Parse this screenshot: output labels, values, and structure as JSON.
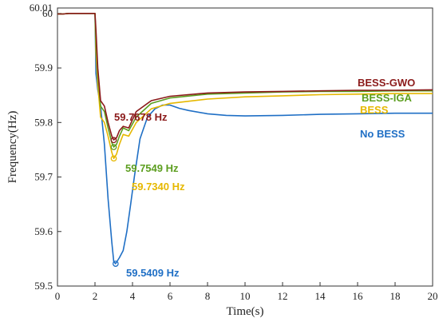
{
  "chart_data": {
    "type": "line",
    "xlabel": "Time(s)",
    "ylabel": "Frequency(Hz)",
    "xlim": [
      0,
      20
    ],
    "ylim": [
      59.5,
      60.01
    ],
    "xticks": [
      "0",
      "2",
      "4",
      "6",
      "8",
      "10",
      "12",
      "14",
      "16",
      "18",
      "20"
    ],
    "yticks": [
      "59.5",
      "59.6",
      "59.7",
      "59.8",
      "59.9",
      "60",
      "60.01"
    ],
    "legend_position": "right",
    "series": [
      {
        "name": "BESS-GWO",
        "color": "#8B1A1A",
        "x": [
          0,
          0.3,
          0.6,
          1.0,
          1.5,
          2.0,
          2.05,
          2.15,
          2.3,
          2.5,
          2.7,
          2.9,
          3.0,
          3.15,
          3.3,
          3.5,
          3.8,
          4.2,
          5,
          6,
          8,
          10,
          12,
          14,
          16,
          18,
          20
        ],
        "y": [
          59.999,
          59.999,
          60.0,
          60.0,
          60.0,
          60.0,
          59.97,
          59.9,
          59.84,
          59.83,
          59.8,
          59.775,
          59.768,
          59.772,
          59.785,
          59.793,
          59.79,
          59.82,
          59.84,
          59.848,
          59.854,
          59.856,
          59.857,
          59.858,
          59.859,
          59.859,
          59.86
        ]
      },
      {
        "name": "BESS-IGA",
        "color": "#5C9E1F",
        "x": [
          0,
          0.3,
          0.6,
          1.0,
          1.5,
          2.0,
          2.05,
          2.15,
          2.3,
          2.5,
          2.7,
          2.9,
          3.0,
          3.15,
          3.3,
          3.5,
          3.8,
          4.2,
          5,
          6,
          8,
          10,
          12,
          14,
          16,
          18,
          20
        ],
        "y": [
          59.999,
          59.999,
          60.0,
          60.0,
          60.0,
          60.0,
          59.95,
          59.89,
          59.83,
          59.82,
          59.79,
          59.763,
          59.755,
          59.76,
          59.775,
          59.79,
          59.785,
          59.81,
          59.835,
          59.845,
          59.852,
          59.854,
          59.856,
          59.857,
          59.857,
          59.858,
          59.858
        ]
      },
      {
        "name": "BESS",
        "color": "#E6B800",
        "x": [
          0,
          0.3,
          0.6,
          1.0,
          1.5,
          2.0,
          2.05,
          2.15,
          2.3,
          2.5,
          2.7,
          2.9,
          3.0,
          3.15,
          3.3,
          3.5,
          3.8,
          4.2,
          5,
          6,
          8,
          10,
          12,
          14,
          16,
          18,
          20
        ],
        "y": [
          59.999,
          59.999,
          60.0,
          60.0,
          60.0,
          60.0,
          59.93,
          59.87,
          59.81,
          59.8,
          59.775,
          59.745,
          59.734,
          59.742,
          59.76,
          59.778,
          59.775,
          59.8,
          59.825,
          59.835,
          59.843,
          59.847,
          59.849,
          59.851,
          59.852,
          59.853,
          59.853
        ]
      },
      {
        "name": "No BESS",
        "color": "#1F6FC5",
        "x": [
          0,
          0.3,
          0.6,
          1.0,
          1.5,
          2.0,
          2.05,
          2.15,
          2.3,
          2.5,
          2.7,
          2.9,
          3.0,
          3.1,
          3.3,
          3.5,
          3.7,
          3.9,
          4.1,
          4.4,
          4.8,
          5.2,
          5.6,
          6.0,
          6.5,
          7,
          8,
          9,
          10,
          12,
          14,
          16,
          18,
          20
        ],
        "y": [
          59.999,
          59.999,
          60.0,
          60.0,
          60.0,
          60.0,
          59.89,
          59.86,
          59.83,
          59.76,
          59.66,
          59.58,
          59.545,
          59.541,
          59.552,
          59.565,
          59.6,
          59.65,
          59.7,
          59.77,
          59.81,
          59.825,
          59.832,
          59.832,
          59.826,
          59.822,
          59.816,
          59.813,
          59.812,
          59.813,
          59.815,
          59.816,
          59.817,
          59.817
        ]
      }
    ],
    "annotations": [
      {
        "text": "59.7678 Hz",
        "color": "#8B1A1A",
        "x": 3.0,
        "y": 59.7678
      },
      {
        "text": "59.7549 Hz",
        "color": "#5C9E1F",
        "x": 3.0,
        "y": 59.7549
      },
      {
        "text": "59.7340 Hz",
        "color": "#E6B800",
        "x": 3.0,
        "y": 59.734
      },
      {
        "text": "59.5409 Hz",
        "color": "#1F6FC5",
        "x": 3.1,
        "y": 59.5409
      }
    ]
  }
}
